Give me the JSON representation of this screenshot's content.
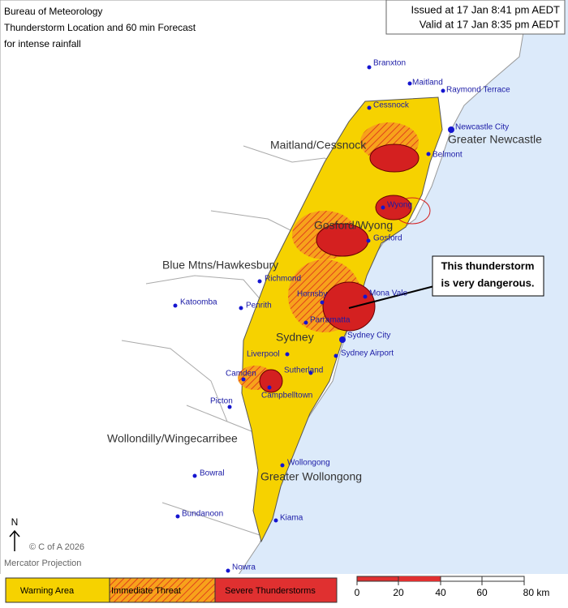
{
  "header": {
    "title": "Bureau of Meteorology",
    "subtitle": "Thunderstorm Location and 60 min Forecast",
    "subtitle2": "for intense rainfall"
  },
  "issue": {
    "issued": "Issued at 17 Jan 8:41 pm AEDT",
    "valid": "Valid at 17 Jan 8:35 pm AEDT"
  },
  "regions": [
    "Maitland/Cessnock",
    "Greater Newcastle",
    "Gosford/Wyong",
    "Blue Mtns/Hawkesbury",
    "Sydney",
    "Wollondilly/Wingecarribee",
    "Greater Wollongong"
  ],
  "places": [
    "Branxton",
    "Maitland",
    "Raymond Terrace",
    "Cessnock",
    "Newcastle City",
    "Belmont",
    "Wyong",
    "Gosford",
    "Richmond",
    "Katoomba",
    "Penrith",
    "Hornsby",
    "Mona Vale",
    "Parramatta",
    "Sydney City",
    "Liverpool",
    "Sydney Airport",
    "Sutherland",
    "Camden",
    "Campbelltown",
    "Picton",
    "Wollongong",
    "Bowral",
    "Bundanoon",
    "Kiama",
    "Nowra"
  ],
  "callout": [
    "This thunderstorm",
    "is very dangerous."
  ],
  "footer": {
    "north": "N",
    "copyright": "© C of A 2026",
    "projection": "Mercator Projection"
  },
  "legend": [
    "Warning Area",
    "Immediate Threat",
    "Severe Thunderstorms"
  ],
  "scale": [
    "0",
    "20",
    "40",
    "60",
    "80 km"
  ]
}
